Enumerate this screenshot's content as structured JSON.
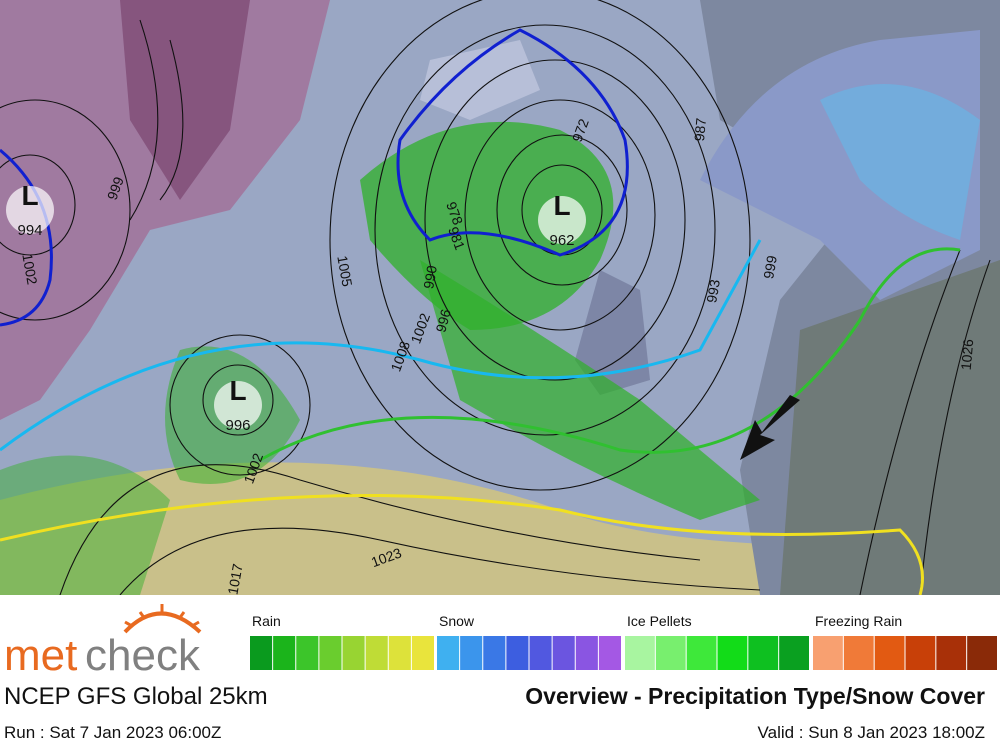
{
  "header": {
    "logo_part1": "met",
    "logo_part2": "check",
    "model": "NCEP GFS Global 25km",
    "title": "Overview - Precipitation Type/Snow Cover",
    "run": "Run : Sat 7 Jan 2023 06:00Z",
    "valid": "Valid : Sun 8 Jan 2023 18:00Z"
  },
  "legend": [
    {
      "label": "Rain",
      "colors": [
        "#0a9a1e",
        "#1bb41b",
        "#3cc52a",
        "#6acd2e",
        "#98d432",
        "#bfdc36",
        "#dde23a",
        "#e9e43c"
      ]
    },
    {
      "label": "Snow",
      "colors": [
        "#3fb0f0",
        "#3b95ec",
        "#3a78e6",
        "#3d5ee0",
        "#5158e0",
        "#6b55e0",
        "#8a55e2",
        "#a458e4"
      ]
    },
    {
      "label": "Ice Pellets",
      "colors": [
        "#a8f5a0",
        "#78ef6e",
        "#3ee83a",
        "#12dc18",
        "#0ec020",
        "#0aa020"
      ]
    },
    {
      "label": "Freezing Rain",
      "colors": [
        "#f8a070",
        "#f07a38",
        "#e25a12",
        "#c84008",
        "#a83008",
        "#8a2a08"
      ]
    }
  ],
  "map": {
    "lows": [
      {
        "symbol": "L",
        "pressure": 994
      },
      {
        "symbol": "L",
        "pressure": 962
      },
      {
        "symbol": "L",
        "pressure": 996
      }
    ],
    "isobar_labels": [
      999,
      1002,
      1005,
      1008,
      1002,
      1023,
      987,
      993,
      999,
      1026,
      972,
      978,
      981,
      990,
      996,
      1002,
      1017
    ]
  }
}
